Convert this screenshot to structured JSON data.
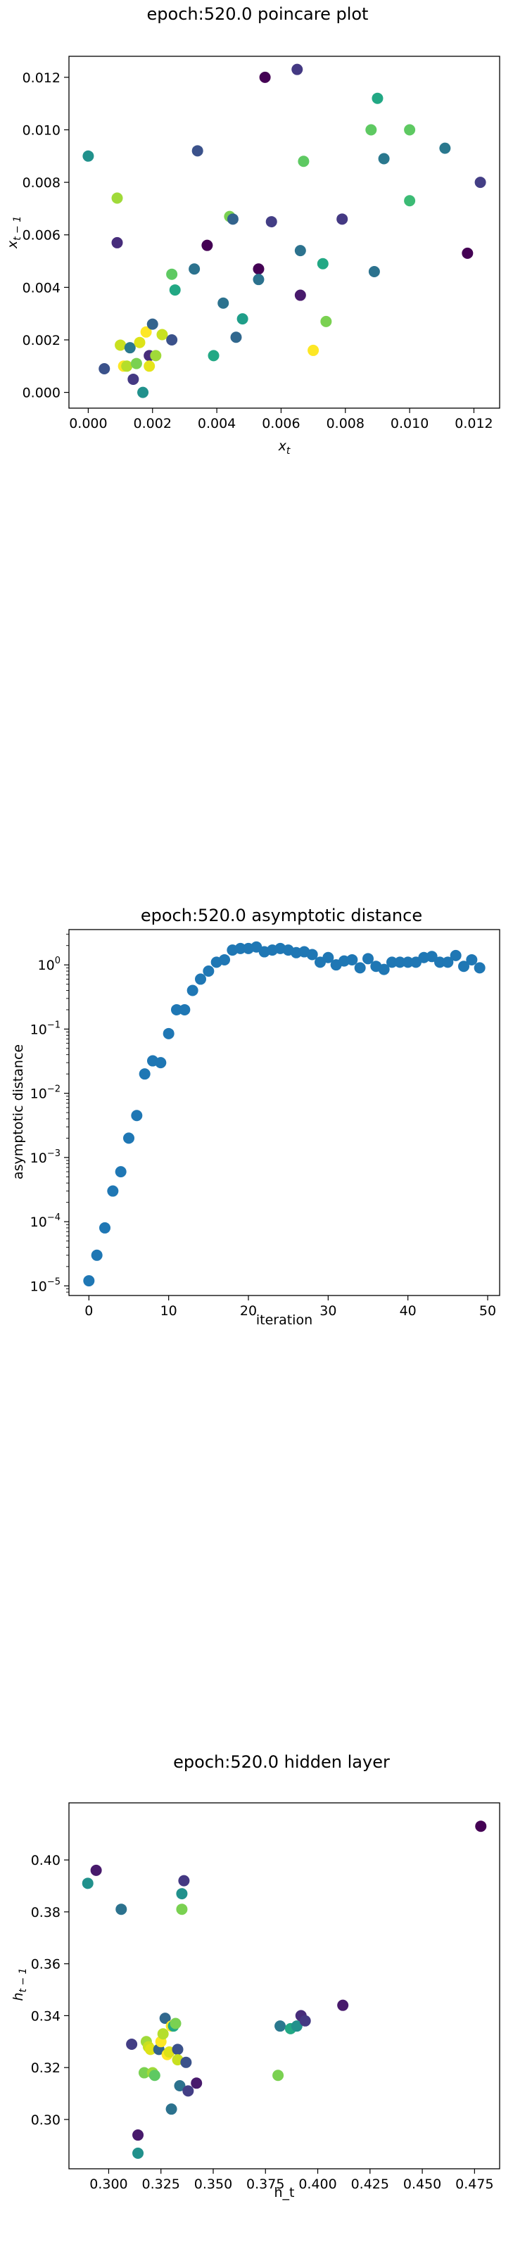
{
  "chart_data": [
    {
      "type": "scatter",
      "title": "epoch:520.0 poincare plot",
      "xlabel": "x_t",
      "ylabel": "x_{t-1}",
      "xlim": [
        -0.0006,
        0.0128
      ],
      "ylim": [
        -0.0006,
        0.0128
      ],
      "xticks": [
        0.0,
        0.002,
        0.004,
        0.006,
        0.008,
        0.01,
        0.012
      ],
      "xtick_labels": [
        "0.000",
        "0.002",
        "0.004",
        "0.006",
        "0.008",
        "0.010",
        "0.012"
      ],
      "yticks": [
        0.0,
        0.002,
        0.004,
        0.006,
        0.008,
        0.01,
        0.012
      ],
      "ytick_labels": [
        "0.000",
        "0.002",
        "0.004",
        "0.006",
        "0.008",
        "0.010",
        "0.012"
      ],
      "grid": false,
      "points": [
        {
          "x": 0.0,
          "y": 0.009,
          "color": "#21918c"
        },
        {
          "x": 0.0005,
          "y": 0.0009,
          "color": "#3b528b"
        },
        {
          "x": 0.0009,
          "y": 0.0074,
          "color": "#a0da39"
        },
        {
          "x": 0.0009,
          "y": 0.0057,
          "color": "#472d7b"
        },
        {
          "x": 0.001,
          "y": 0.0018,
          "color": "#c8e020"
        },
        {
          "x": 0.0011,
          "y": 0.001,
          "color": "#fde725"
        },
        {
          "x": 0.0012,
          "y": 0.001,
          "color": "#b5de2b"
        },
        {
          "x": 0.0013,
          "y": 0.0017,
          "color": "#2a788e"
        },
        {
          "x": 0.0014,
          "y": 0.0005,
          "color": "#443983"
        },
        {
          "x": 0.0015,
          "y": 0.0011,
          "color": "#7ad151"
        },
        {
          "x": 0.0016,
          "y": 0.0019,
          "color": "#dde318"
        },
        {
          "x": 0.0017,
          "y": 0.0,
          "color": "#21918c"
        },
        {
          "x": 0.0018,
          "y": 0.0023,
          "color": "#fde725"
        },
        {
          "x": 0.0019,
          "y": 0.0014,
          "color": "#472d7b"
        },
        {
          "x": 0.0019,
          "y": 0.001,
          "color": "#e5e419"
        },
        {
          "x": 0.002,
          "y": 0.0026,
          "color": "#33638d"
        },
        {
          "x": 0.0021,
          "y": 0.0014,
          "color": "#a0da39"
        },
        {
          "x": 0.0023,
          "y": 0.0022,
          "color": "#c8e020"
        },
        {
          "x": 0.0026,
          "y": 0.002,
          "color": "#3b528b"
        },
        {
          "x": 0.0026,
          "y": 0.0045,
          "color": "#5ec962"
        },
        {
          "x": 0.0027,
          "y": 0.0039,
          "color": "#22a884"
        },
        {
          "x": 0.0033,
          "y": 0.0047,
          "color": "#2c728e"
        },
        {
          "x": 0.0034,
          "y": 0.0092,
          "color": "#3b528b"
        },
        {
          "x": 0.0037,
          "y": 0.0056,
          "color": "#440154"
        },
        {
          "x": 0.0039,
          "y": 0.0014,
          "color": "#22a884"
        },
        {
          "x": 0.0042,
          "y": 0.0034,
          "color": "#2c728e"
        },
        {
          "x": 0.0044,
          "y": 0.0067,
          "color": "#7ad151"
        },
        {
          "x": 0.0045,
          "y": 0.0066,
          "color": "#33638d"
        },
        {
          "x": 0.0046,
          "y": 0.0021,
          "color": "#31688e"
        },
        {
          "x": 0.0048,
          "y": 0.0028,
          "color": "#1f9e89"
        },
        {
          "x": 0.0053,
          "y": 0.0047,
          "color": "#440154"
        },
        {
          "x": 0.0053,
          "y": 0.0043,
          "color": "#2c728e"
        },
        {
          "x": 0.0055,
          "y": 0.012,
          "color": "#440154"
        },
        {
          "x": 0.0057,
          "y": 0.0065,
          "color": "#433e85"
        },
        {
          "x": 0.0065,
          "y": 0.0123,
          "color": "#443983"
        },
        {
          "x": 0.0066,
          "y": 0.0037,
          "color": "#481a6c"
        },
        {
          "x": 0.0066,
          "y": 0.0054,
          "color": "#2c728e"
        },
        {
          "x": 0.0067,
          "y": 0.0088,
          "color": "#5ec962"
        },
        {
          "x": 0.007,
          "y": 0.0016,
          "color": "#fde725"
        },
        {
          "x": 0.0073,
          "y": 0.0049,
          "color": "#22a884"
        },
        {
          "x": 0.0074,
          "y": 0.0027,
          "color": "#7ad151"
        },
        {
          "x": 0.0079,
          "y": 0.0066,
          "color": "#443983"
        },
        {
          "x": 0.0088,
          "y": 0.01,
          "color": "#5ec962"
        },
        {
          "x": 0.0089,
          "y": 0.0046,
          "color": "#2c728e"
        },
        {
          "x": 0.009,
          "y": 0.0112,
          "color": "#22a884"
        },
        {
          "x": 0.0092,
          "y": 0.0089,
          "color": "#2a788e"
        },
        {
          "x": 0.01,
          "y": 0.01,
          "color": "#5ec962"
        },
        {
          "x": 0.01,
          "y": 0.0073,
          "color": "#3cbb75"
        },
        {
          "x": 0.0111,
          "y": 0.0093,
          "color": "#2a788e"
        },
        {
          "x": 0.0118,
          "y": 0.0053,
          "color": "#440154"
        },
        {
          "x": 0.0122,
          "y": 0.008,
          "color": "#433e85"
        }
      ]
    },
    {
      "type": "scatter",
      "title": "epoch:520.0 asymptotic distance",
      "xlabel": "iteration",
      "ylabel": "asymptotic distance",
      "xlim": [
        -2.5,
        51.5
      ],
      "ylim_log10": [
        -5.15,
        0.55
      ],
      "yscale": "log",
      "xticks": [
        0,
        10,
        20,
        30,
        40,
        50
      ],
      "xtick_labels": [
        "0",
        "10",
        "20",
        "30",
        "40",
        "50"
      ],
      "yticks_exp": [
        -5,
        -4,
        -3,
        -2,
        -1,
        0
      ],
      "ytick_labels": [
        {
          "base": "10",
          "exp": "−5"
        },
        {
          "base": "10",
          "exp": "−4"
        },
        {
          "base": "10",
          "exp": "−3"
        },
        {
          "base": "10",
          "exp": "−2"
        },
        {
          "base": "10",
          "exp": "−1"
        },
        {
          "base": "10",
          "exp": "0"
        }
      ],
      "color": "#1f77b4",
      "grid": false,
      "x": [
        0,
        1,
        2,
        3,
        4,
        5,
        6,
        7,
        8,
        9,
        10,
        11,
        12,
        13,
        14,
        15,
        16,
        17,
        18,
        19,
        20,
        21,
        22,
        23,
        24,
        25,
        26,
        27,
        28,
        29,
        30,
        31,
        32,
        33,
        34,
        35,
        36,
        37,
        38,
        39,
        40,
        41,
        42,
        43,
        44,
        45,
        46,
        47,
        48,
        49
      ],
      "y": [
        1.2e-05,
        3e-05,
        8e-05,
        0.0003,
        0.0006,
        0.002,
        0.0045,
        0.02,
        0.032,
        0.03,
        0.085,
        0.2,
        0.2,
        0.4,
        0.6,
        0.8,
        1.1,
        1.2,
        1.7,
        1.8,
        1.8,
        1.9,
        1.6,
        1.7,
        1.8,
        1.7,
        1.55,
        1.6,
        1.45,
        1.1,
        1.3,
        1.0,
        1.15,
        1.2,
        0.9,
        1.25,
        0.95,
        0.85,
        1.1,
        1.1,
        1.1,
        1.1,
        1.3,
        1.35,
        1.1,
        1.1,
        1.4,
        0.95,
        1.2,
        0.9
      ]
    },
    {
      "type": "scatter",
      "title": "epoch:520.0 hidden layer",
      "xlabel": "h_t",
      "ylabel": "h_{t-1}",
      "xlim": [
        0.281,
        0.487
      ],
      "ylim": [
        0.281,
        0.422
      ],
      "xticks": [
        0.3,
        0.325,
        0.35,
        0.375,
        0.4,
        0.425,
        0.45,
        0.475
      ],
      "xtick_labels": [
        "0.300",
        "0.325",
        "0.350",
        "0.375",
        "0.400",
        "0.425",
        "0.450",
        "0.475"
      ],
      "yticks": [
        0.3,
        0.32,
        0.34,
        0.36,
        0.38,
        0.4
      ],
      "ytick_labels": [
        "0.30",
        "0.32",
        "0.34",
        "0.36",
        "0.38",
        "0.40"
      ],
      "grid": false,
      "points": [
        {
          "x": 0.29,
          "y": 0.391,
          "color": "#21918c"
        },
        {
          "x": 0.294,
          "y": 0.396,
          "color": "#481a6c"
        },
        {
          "x": 0.306,
          "y": 0.381,
          "color": "#2c728e"
        },
        {
          "x": 0.311,
          "y": 0.329,
          "color": "#433e85"
        },
        {
          "x": 0.314,
          "y": 0.294,
          "color": "#481a6c"
        },
        {
          "x": 0.314,
          "y": 0.287,
          "color": "#21918c"
        },
        {
          "x": 0.317,
          "y": 0.318,
          "color": "#7ad151"
        },
        {
          "x": 0.318,
          "y": 0.33,
          "color": "#a0da39"
        },
        {
          "x": 0.319,
          "y": 0.328,
          "color": "#c8e020"
        },
        {
          "x": 0.32,
          "y": 0.327,
          "color": "#dde318"
        },
        {
          "x": 0.321,
          "y": 0.318,
          "color": "#a0da39"
        },
        {
          "x": 0.322,
          "y": 0.317,
          "color": "#5ec962"
        },
        {
          "x": 0.324,
          "y": 0.327,
          "color": "#33638d"
        },
        {
          "x": 0.325,
          "y": 0.33,
          "color": "#fde725"
        },
        {
          "x": 0.326,
          "y": 0.333,
          "color": "#b5de2b"
        },
        {
          "x": 0.327,
          "y": 0.339,
          "color": "#31688e"
        },
        {
          "x": 0.328,
          "y": 0.325,
          "color": "#fde725"
        },
        {
          "x": 0.329,
          "y": 0.326,
          "color": "#dde318"
        },
        {
          "x": 0.33,
          "y": 0.304,
          "color": "#2c728e"
        },
        {
          "x": 0.33,
          "y": 0.336,
          "color": "#fde725"
        },
        {
          "x": 0.331,
          "y": 0.336,
          "color": "#22a884"
        },
        {
          "x": 0.332,
          "y": 0.337,
          "color": "#7ad151"
        },
        {
          "x": 0.333,
          "y": 0.327,
          "color": "#3b528b"
        },
        {
          "x": 0.333,
          "y": 0.323,
          "color": "#c8e020"
        },
        {
          "x": 0.334,
          "y": 0.313,
          "color": "#2c728e"
        },
        {
          "x": 0.335,
          "y": 0.387,
          "color": "#21918c"
        },
        {
          "x": 0.335,
          "y": 0.381,
          "color": "#7ad151"
        },
        {
          "x": 0.336,
          "y": 0.392,
          "color": "#443983"
        },
        {
          "x": 0.337,
          "y": 0.322,
          "color": "#3b528b"
        },
        {
          "x": 0.338,
          "y": 0.311,
          "color": "#433e85"
        },
        {
          "x": 0.342,
          "y": 0.314,
          "color": "#481a6c"
        },
        {
          "x": 0.381,
          "y": 0.317,
          "color": "#7ad151"
        },
        {
          "x": 0.382,
          "y": 0.336,
          "color": "#2a788e"
        },
        {
          "x": 0.387,
          "y": 0.335,
          "color": "#22a884"
        },
        {
          "x": 0.39,
          "y": 0.336,
          "color": "#21918c"
        },
        {
          "x": 0.392,
          "y": 0.34,
          "color": "#472d7b"
        },
        {
          "x": 0.394,
          "y": 0.338,
          "color": "#443983"
        },
        {
          "x": 0.412,
          "y": 0.344,
          "color": "#481a6c"
        },
        {
          "x": 0.478,
          "y": 0.413,
          "color": "#440154"
        }
      ]
    }
  ]
}
